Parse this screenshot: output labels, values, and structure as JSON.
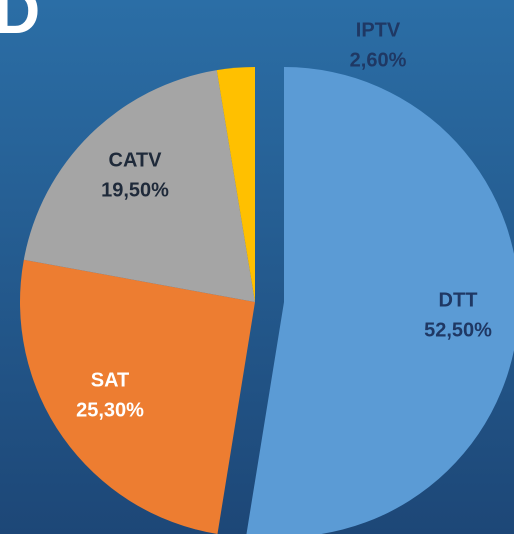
{
  "panel_label": "D",
  "chart_data": {
    "type": "pie",
    "categories": [
      "DTT",
      "SAT",
      "CATV",
      "IPTV"
    ],
    "values": [
      52.5,
      25.3,
      19.5,
      2.6
    ],
    "value_labels": [
      "52,50%",
      "25,30%",
      "19,50%",
      "2,60%"
    ],
    "colors": [
      "#5b9bd5",
      "#ed7d31",
      "#a5a5a5",
      "#ffc000"
    ],
    "exploded": [
      true,
      false,
      false,
      false
    ]
  }
}
